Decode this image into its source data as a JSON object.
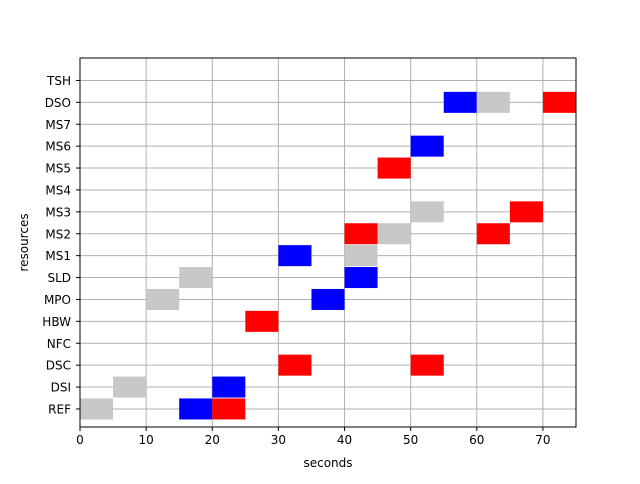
{
  "chart_data": {
    "type": "gantt",
    "title": "",
    "xlabel": "seconds",
    "ylabel": "resources",
    "xlim": [
      0,
      75
    ],
    "x_ticks": [
      0,
      10,
      20,
      30,
      40,
      50,
      60,
      70
    ],
    "grid": true,
    "resources": [
      "REF",
      "DSI",
      "DSC",
      "NFC",
      "HBW",
      "MPO",
      "SLD",
      "MS1",
      "MS2",
      "MS3",
      "MS4",
      "MS5",
      "MS6",
      "MS7",
      "DSO",
      "TSH"
    ],
    "colors": {
      "gray": "#c8c8c8",
      "blue": "#0000ff",
      "red": "#ff0000"
    },
    "tasks": [
      {
        "resource": "REF",
        "start": 0,
        "end": 5,
        "color": "gray"
      },
      {
        "resource": "REF",
        "start": 15,
        "end": 20,
        "color": "blue"
      },
      {
        "resource": "REF",
        "start": 20,
        "end": 25,
        "color": "red"
      },
      {
        "resource": "DSI",
        "start": 5,
        "end": 10,
        "color": "gray"
      },
      {
        "resource": "DSI",
        "start": 20,
        "end": 25,
        "color": "blue"
      },
      {
        "resource": "DSC",
        "start": 30,
        "end": 35,
        "color": "red"
      },
      {
        "resource": "DSC",
        "start": 50,
        "end": 55,
        "color": "red"
      },
      {
        "resource": "HBW",
        "start": 25,
        "end": 30,
        "color": "red"
      },
      {
        "resource": "MPO",
        "start": 10,
        "end": 15,
        "color": "gray"
      },
      {
        "resource": "MPO",
        "start": 35,
        "end": 40,
        "color": "blue"
      },
      {
        "resource": "SLD",
        "start": 15,
        "end": 20,
        "color": "gray"
      },
      {
        "resource": "SLD",
        "start": 40,
        "end": 45,
        "color": "blue"
      },
      {
        "resource": "MS1",
        "start": 30,
        "end": 35,
        "color": "blue"
      },
      {
        "resource": "MS1",
        "start": 40,
        "end": 45,
        "color": "gray"
      },
      {
        "resource": "MS2",
        "start": 40,
        "end": 45,
        "color": "red"
      },
      {
        "resource": "MS2",
        "start": 45,
        "end": 50,
        "color": "gray"
      },
      {
        "resource": "MS2",
        "start": 60,
        "end": 65,
        "color": "red"
      },
      {
        "resource": "MS3",
        "start": 50,
        "end": 55,
        "color": "gray"
      },
      {
        "resource": "MS3",
        "start": 65,
        "end": 70,
        "color": "red"
      },
      {
        "resource": "MS5",
        "start": 45,
        "end": 50,
        "color": "red"
      },
      {
        "resource": "MS6",
        "start": 50,
        "end": 55,
        "color": "blue"
      },
      {
        "resource": "DSO",
        "start": 55,
        "end": 60,
        "color": "blue"
      },
      {
        "resource": "DSO",
        "start": 60,
        "end": 65,
        "color": "gray"
      },
      {
        "resource": "DSO",
        "start": 70,
        "end": 75,
        "color": "red"
      }
    ]
  }
}
